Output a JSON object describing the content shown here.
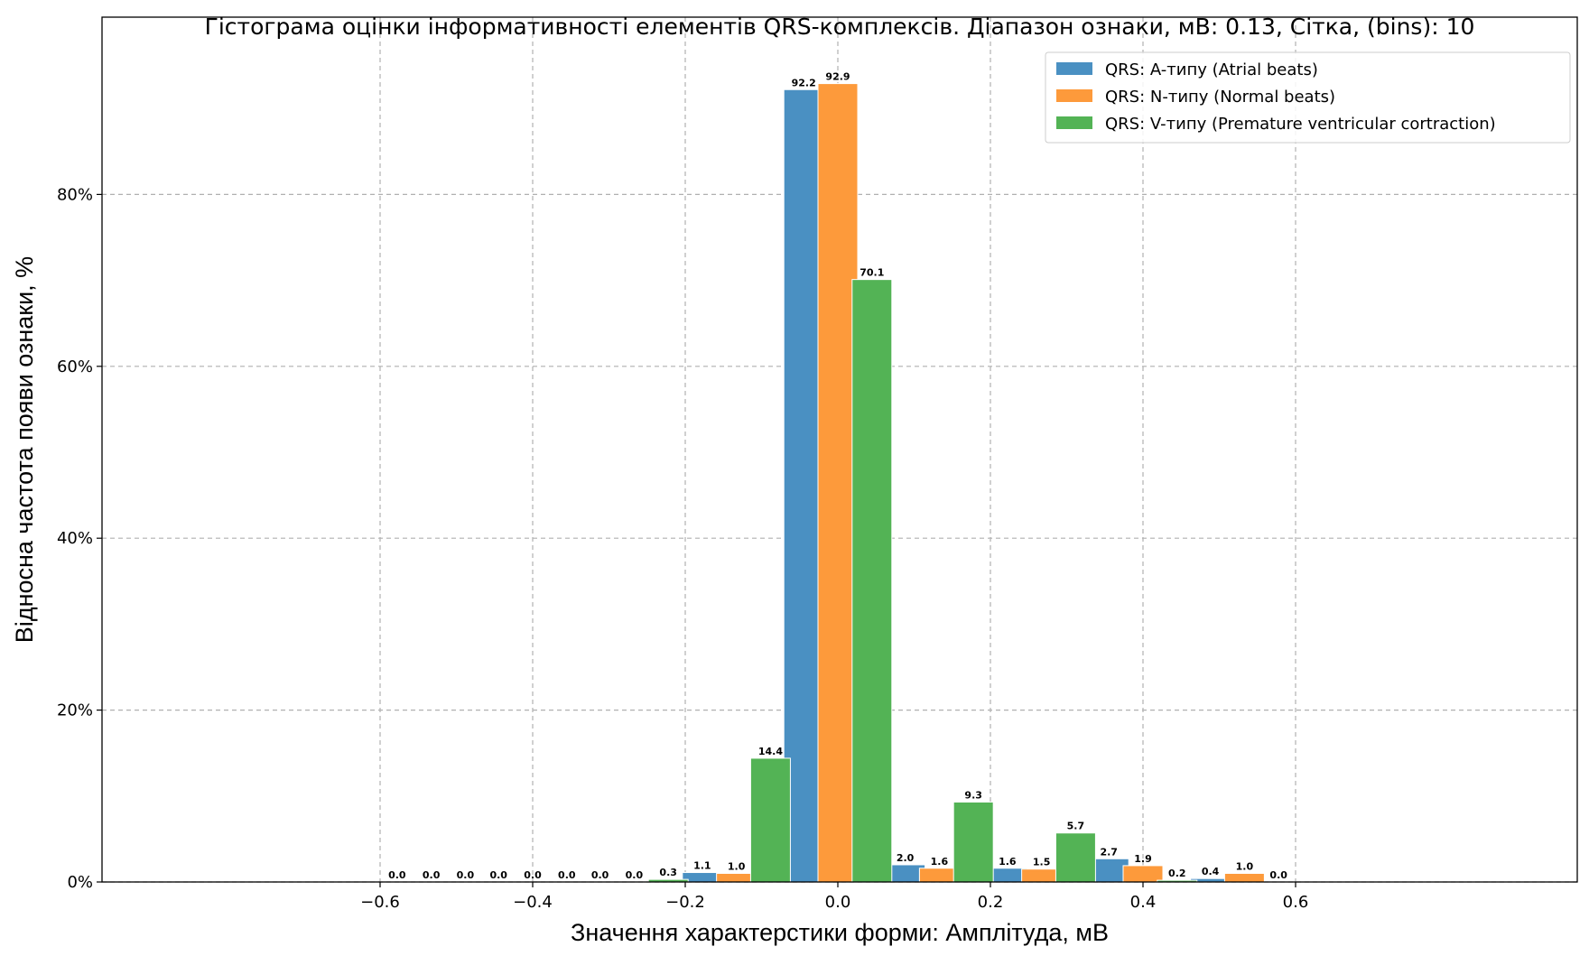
{
  "chart_data": {
    "type": "bar",
    "title": "Гістограма оцінки інформативності елементів QRS-комплексів. Діапазон ознаки, мВ: 0.13, Сітка, (bins): 10",
    "xlabel": "Значення характерстики форми: Амплітуда, мВ",
    "ylabel": "Відносна частота появи ознаки, %",
    "xlim": [
      -0.6,
      0.6
    ],
    "ylim": [
      0,
      97.5
    ],
    "xticks": [
      -0.6,
      -0.4,
      -0.2,
      0.0,
      0.2,
      0.4,
      0.6
    ],
    "xtick_labels": [
      "−0.6",
      "−0.4",
      "−0.2",
      "0.0",
      "0.2",
      "0.4",
      "0.6"
    ],
    "yticks": [
      0,
      20,
      40,
      60,
      80
    ],
    "ytick_labels": [
      "0%",
      "20%",
      "40%",
      "60%",
      "80%"
    ],
    "grid": true,
    "legend_position": "top-right",
    "bin_x": [
      -0.533,
      -0.4,
      -0.267,
      -0.133,
      0.0,
      0.133,
      0.267,
      0.4,
      0.533
    ],
    "bar_offset": 0.0355,
    "series": [
      {
        "name": "QRS: A-типу (Atrial beats)",
        "color": "#4a90c2",
        "values": [
          0.0,
          0.0,
          0.0,
          1.1,
          92.2,
          2.0,
          1.6,
          2.7,
          0.4
        ],
        "labels": [
          "0.0",
          "0.0",
          "0.0",
          "1.1",
          "92.2",
          "2.0",
          "1.6",
          "2.7",
          "0.4"
        ]
      },
      {
        "name": "QRS: N-типу (Normal beats)",
        "color": "#fd9a3b",
        "values": [
          0.0,
          0.0,
          0.0,
          1.0,
          92.9,
          1.6,
          1.5,
          1.9,
          1.0
        ],
        "labels": [
          "0.0",
          "0.0",
          "0.0",
          "1.0",
          "92.9",
          "1.6",
          "1.5",
          "1.9",
          "1.0"
        ]
      },
      {
        "name": "QRS: V-типу (Premature ventricular cortraction)",
        "color": "#53b355",
        "values": [
          0.0,
          0.0,
          0.3,
          14.4,
          70.1,
          9.3,
          5.7,
          0.2,
          0.0
        ],
        "labels": [
          "0.0",
          "0.0",
          "0.3",
          "14.4",
          "70.1",
          "9.3",
          "5.7",
          "0.2",
          "0.0"
        ]
      }
    ]
  }
}
